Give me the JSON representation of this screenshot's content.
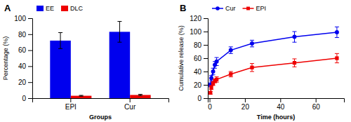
{
  "chart_data": [
    {
      "type": "bar",
      "title": "A",
      "categories": [
        "EPI",
        "Cur"
      ],
      "series": [
        {
          "name": "EE",
          "color": "#0000EE",
          "values": [
            72,
            83
          ],
          "errors": [
            10,
            13
          ]
        },
        {
          "name": "DLC",
          "color": "#EE0000",
          "values": [
            3,
            4
          ],
          "errors": [
            0.5,
            0.8
          ]
        }
      ],
      "xlabel": "Groups",
      "ylabel": "Percentage (%)",
      "ylim": [
        0,
        100
      ],
      "yticks": [
        0,
        20,
        40,
        60,
        80,
        100
      ],
      "legend": "upper left"
    },
    {
      "type": "line",
      "title": "B",
      "x": [
        0.5,
        1,
        2,
        3,
        4,
        12,
        24,
        48,
        72
      ],
      "series": [
        {
          "name": "Cur",
          "color": "#0000EE",
          "marker": "circle",
          "values": [
            20,
            30,
            40,
            50,
            55,
            72,
            82,
            92,
            99
          ],
          "errors": [
            3,
            4,
            5,
            5,
            6,
            5,
            5,
            8,
            8
          ]
        },
        {
          "name": "EPI",
          "color": "#EE0000",
          "marker": "square",
          "values": [
            8,
            16,
            22,
            26,
            28,
            36,
            46,
            53,
            60
          ],
          "errors": [
            2,
            3,
            3,
            3,
            4,
            4,
            6,
            6,
            7
          ]
        }
      ],
      "xlabel": "Time (hours)",
      "ylabel": "Cumulative release (%)",
      "xlim": [
        -1,
        76
      ],
      "xticks": [
        0,
        20,
        40,
        60
      ],
      "ylim": [
        0,
        120
      ],
      "yticks": [
        0,
        20,
        40,
        60,
        80,
        100,
        120
      ],
      "legend": "upper left"
    }
  ]
}
